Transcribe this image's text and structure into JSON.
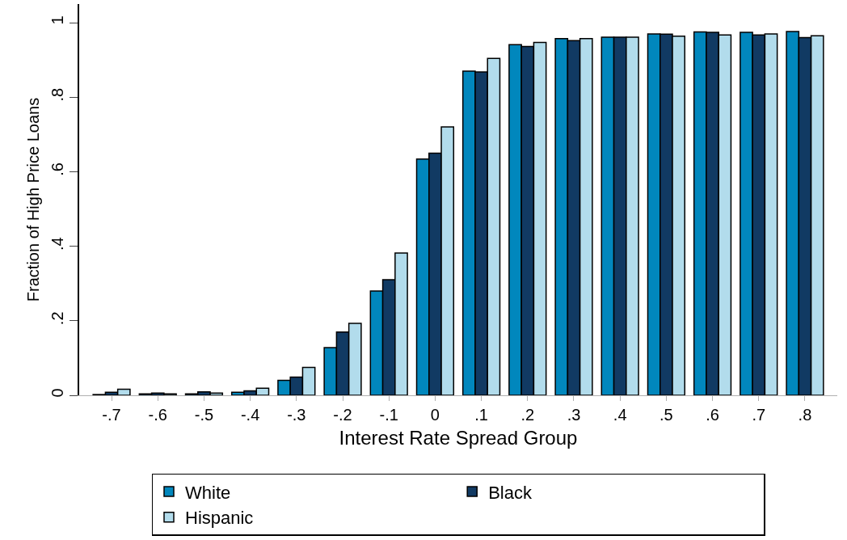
{
  "chart_data": {
    "type": "bar",
    "xlabel": "Interest Rate Spread Group",
    "ylabel": "Fraction of High Price Loans",
    "categories": [
      "-.7",
      "-.6",
      "-.5",
      "-.4",
      "-.3",
      "-.2",
      "-.1",
      "0",
      ".1",
      ".2",
      ".3",
      ".4",
      ".5",
      ".6",
      ".7",
      ".8"
    ],
    "series": [
      {
        "name": "White",
        "color": "#0187bd",
        "values": [
          0.002,
          0.004,
          0.004,
          0.008,
          0.04,
          0.128,
          0.28,
          0.634,
          0.87,
          0.941,
          0.957,
          0.961,
          0.97,
          0.975,
          0.974,
          0.976
        ]
      },
      {
        "name": "Black",
        "color": "#113a63",
        "values": [
          0.008,
          0.006,
          0.009,
          0.012,
          0.049,
          0.17,
          0.31,
          0.65,
          0.868,
          0.936,
          0.952,
          0.961,
          0.969,
          0.974,
          0.967,
          0.96
        ]
      },
      {
        "name": "Hispanic",
        "color": "#b2dcec",
        "values": [
          0.016,
          0.004,
          0.006,
          0.019,
          0.075,
          0.193,
          0.382,
          0.72,
          0.904,
          0.947,
          0.957,
          0.961,
          0.964,
          0.967,
          0.97,
          0.965
        ]
      }
    ],
    "ylim": [
      0,
      1.05
    ],
    "yticks": [
      0,
      {
        "value": 0.2,
        "label": ".2"
      },
      {
        "value": 0.4,
        "label": ".4"
      },
      {
        "value": 0.6,
        "label": ".6"
      },
      {
        "value": 0.8,
        "label": ".8"
      },
      1
    ],
    "legend": "bottom"
  }
}
